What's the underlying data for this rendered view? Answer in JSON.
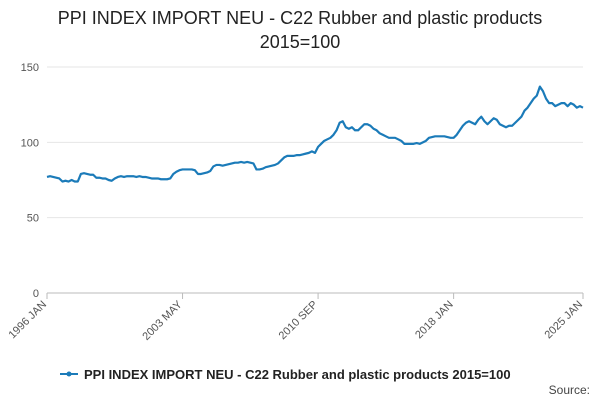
{
  "chart_data": {
    "type": "line",
    "title": "PPI INDEX IMPORT NEU - C22 Rubber and plastic products 2015=100",
    "source": "Source:",
    "categories": [
      "1996 JAN",
      null,
      null,
      null,
      null,
      null,
      null,
      null,
      null,
      null,
      null,
      null,
      null,
      null,
      null,
      null,
      null,
      null,
      null,
      null,
      null,
      null,
      null,
      null,
      null,
      null,
      null,
      null,
      null,
      null,
      null,
      null,
      null,
      null,
      null,
      null,
      null,
      null,
      null,
      null,
      null,
      null,
      null,
      null,
      "2003 MAY",
      null,
      null,
      null,
      null,
      null,
      null,
      null,
      null,
      null,
      null,
      null,
      null,
      null,
      null,
      null,
      null,
      null,
      null,
      null,
      null,
      null,
      null,
      null,
      null,
      null,
      null,
      null,
      null,
      null,
      null,
      null,
      null,
      null,
      null,
      null,
      null,
      null,
      null,
      null,
      null,
      null,
      null,
      null,
      "2010 SEP",
      null,
      null,
      null,
      null,
      null,
      null,
      null,
      null,
      null,
      null,
      null,
      null,
      null,
      null,
      null,
      null,
      null,
      null,
      null,
      null,
      null,
      null,
      null,
      null,
      null,
      null,
      null,
      null,
      null,
      null,
      null,
      null,
      null,
      null,
      null,
      null,
      null,
      null,
      null,
      null,
      null,
      null,
      null,
      "2018 JAN",
      null,
      null,
      null,
      null,
      null,
      null,
      null,
      null,
      null,
      null,
      null,
      null,
      null,
      null,
      null,
      null,
      null,
      null,
      null,
      null,
      null,
      null,
      null,
      null,
      null,
      null,
      null,
      null,
      null,
      null,
      null,
      null,
      null,
      null,
      null,
      null,
      null,
      null,
      null,
      null,
      null,
      "2025 JAN"
    ],
    "series": [
      {
        "name": "PPI INDEX IMPORT NEU - C22 Rubber and plastic products 2015=100",
        "color": "#1b7bb9",
        "values": [
          77,
          77.5,
          77,
          76.5,
          76,
          74,
          74.5,
          74,
          75,
          74,
          74,
          79,
          79.5,
          79,
          78.5,
          78.5,
          76.5,
          76.5,
          76,
          76,
          75,
          74.5,
          76,
          77,
          77.5,
          77,
          77.5,
          77.5,
          77.5,
          77,
          77.5,
          77,
          77,
          76.5,
          76,
          76,
          76,
          75.5,
          75.5,
          75.5,
          76,
          79,
          80.5,
          81.5,
          82,
          82,
          82,
          82,
          81.5,
          79,
          79,
          79.5,
          80,
          81,
          84,
          85,
          85,
          84.5,
          85,
          85.5,
          86,
          86.5,
          86.5,
          87,
          86.5,
          87,
          86.5,
          86,
          82,
          82,
          82.5,
          83.5,
          84,
          84.5,
          85,
          86,
          88,
          90,
          91,
          91,
          91,
          91.5,
          91.5,
          92,
          92.5,
          93,
          94,
          93,
          97,
          99,
          101,
          102,
          103,
          105,
          108,
          113,
          114,
          110,
          109,
          110,
          108,
          108,
          110,
          112,
          112,
          111,
          109,
          108,
          106,
          105,
          104,
          103,
          103,
          103,
          102,
          101,
          99,
          99,
          99,
          99,
          99.5,
          99,
          100,
          101,
          103,
          103.5,
          104,
          104,
          104,
          104,
          103.5,
          103,
          103,
          105,
          108,
          111,
          113,
          114,
          113,
          112,
          115,
          117,
          114,
          112,
          114,
          116,
          115,
          112,
          111,
          110,
          111,
          111,
          113,
          115,
          117,
          121,
          123,
          126,
          129,
          131,
          137,
          134,
          129,
          126,
          126,
          124,
          125,
          126,
          126,
          124,
          126,
          125,
          123,
          124,
          123
        ]
      }
    ],
    "ylim": [
      0,
      150
    ],
    "yticks": [
      0,
      50,
      100,
      150
    ],
    "grid": true
  }
}
